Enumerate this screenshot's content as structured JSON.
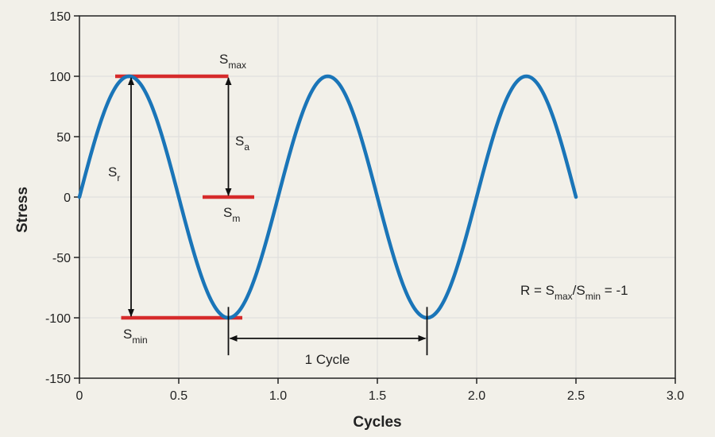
{
  "chart_data": {
    "type": "line",
    "title": "",
    "xlabel": "Cycles",
    "ylabel": "Stress",
    "xlim": [
      0,
      3.0
    ],
    "ylim": [
      -150,
      150
    ],
    "x_ticks": [
      0,
      0.5,
      1.0,
      1.5,
      2.0,
      2.5,
      3.0
    ],
    "x_tick_labels": [
      "0",
      "0.5",
      "1.0",
      "1.5",
      "2.0",
      "2.5",
      "3.0"
    ],
    "y_ticks": [
      150,
      100,
      50,
      0,
      -50,
      -100,
      -150
    ],
    "y_tick_labels": [
      "150",
      "100",
      "50",
      "0",
      "-50",
      "-100",
      "-150"
    ],
    "grid": true,
    "series": [
      {
        "amplitude": 100,
        "period": 1.0,
        "x_start": 0,
        "x_end": 2.5,
        "color": "#1a75b8"
      }
    ],
    "reference_lines": [
      {
        "y": 100,
        "x_start": 0.18,
        "x_end": 0.75,
        "color": "#d62b2b"
      },
      {
        "y": 0,
        "x_start": 0.62,
        "x_end": 0.88,
        "color": "#d62b2b"
      },
      {
        "y": -100,
        "x_start": 0.21,
        "x_end": 0.82,
        "color": "#d62b2b"
      }
    ],
    "annotations": {
      "smax": {
        "main": "S",
        "sub": "max"
      },
      "sa": {
        "main": "S",
        "sub": "a"
      },
      "sm": {
        "main": "S",
        "sub": "m"
      },
      "sr": {
        "main": "S",
        "sub": "r"
      },
      "smin": {
        "main": "S",
        "sub": "min"
      },
      "cycle": "1 Cycle",
      "ratio": {
        "prefix": "R = S",
        "sub1": "max",
        "mid": "/S",
        "sub2": "min",
        "suffix": " = -1"
      }
    }
  }
}
